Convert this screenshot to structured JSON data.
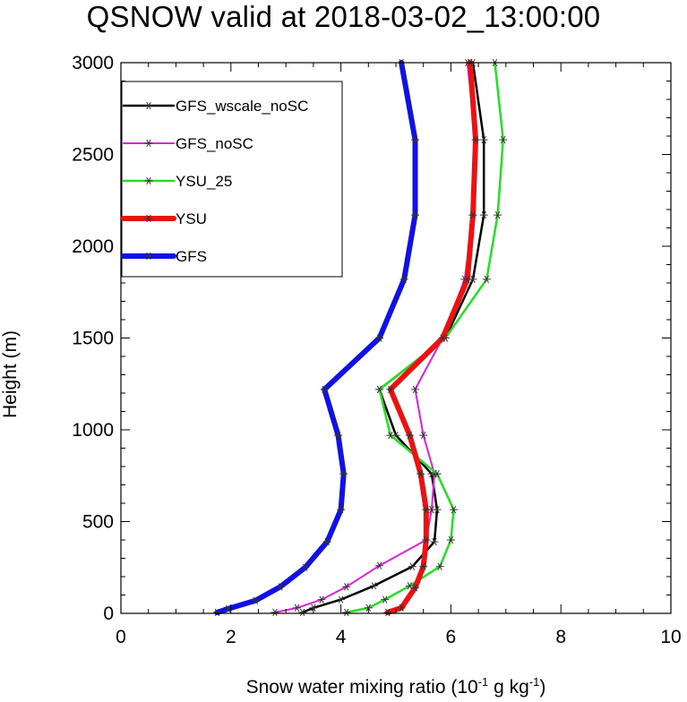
{
  "chart_data": {
    "type": "line",
    "title": "QSNOW valid at 2018-03-02_13:00:00",
    "xlabel_parts": [
      "Snow water mixing ratio (10",
      "-1",
      " g kg",
      "-1",
      ")"
    ],
    "ylabel": "Height (m)",
    "xlim": [
      0,
      10
    ],
    "ylim": [
      0,
      3000
    ],
    "x_ticks": [
      "0",
      "2",
      "4",
      "6",
      "8",
      "10"
    ],
    "y_ticks": [
      "0",
      "500",
      "1000",
      "1500",
      "2000",
      "2500",
      "3000"
    ],
    "grid": false,
    "legend_position": "top-left",
    "series": [
      {
        "name": "GFS_wscale_noSC",
        "color": "#000000",
        "width": 2.5,
        "points": [
          [
            3.3,
            5
          ],
          [
            3.5,
            30
          ],
          [
            4.0,
            75
          ],
          [
            4.6,
            150
          ],
          [
            5.3,
            255
          ],
          [
            5.7,
            390
          ],
          [
            5.75,
            565
          ],
          [
            5.65,
            760
          ],
          [
            5.0,
            970
          ],
          [
            4.7,
            1220
          ],
          [
            5.9,
            1500
          ],
          [
            6.4,
            1820
          ],
          [
            6.6,
            2170
          ],
          [
            6.6,
            2580
          ],
          [
            6.4,
            3000
          ]
        ]
      },
      {
        "name": "GFS_noSC",
        "color": "#e020e0",
        "width": 2,
        "points": [
          [
            2.8,
            5
          ],
          [
            3.2,
            30
          ],
          [
            3.65,
            75
          ],
          [
            4.1,
            145
          ],
          [
            4.7,
            260
          ],
          [
            5.55,
            400
          ],
          [
            5.65,
            565
          ],
          [
            5.7,
            760
          ],
          [
            5.5,
            970
          ],
          [
            5.35,
            1220
          ],
          [
            5.85,
            1500
          ],
          [
            6.25,
            1820
          ],
          [
            6.4,
            2170
          ],
          [
            6.45,
            2580
          ],
          [
            6.3,
            3000
          ]
        ]
      },
      {
        "name": "YSU_25",
        "color": "#22e022",
        "width": 2.5,
        "points": [
          [
            4.1,
            5
          ],
          [
            4.5,
            30
          ],
          [
            4.8,
            75
          ],
          [
            5.25,
            150
          ],
          [
            5.8,
            255
          ],
          [
            6.0,
            400
          ],
          [
            6.05,
            565
          ],
          [
            5.75,
            760
          ],
          [
            4.9,
            970
          ],
          [
            4.7,
            1220
          ],
          [
            5.9,
            1500
          ],
          [
            6.65,
            1820
          ],
          [
            6.85,
            2170
          ],
          [
            6.95,
            2580
          ],
          [
            6.8,
            3000
          ]
        ]
      },
      {
        "name": "YSU",
        "color": "#ee1111",
        "width": 6,
        "points": [
          [
            4.85,
            5
          ],
          [
            5.1,
            30
          ],
          [
            5.35,
            140
          ],
          [
            5.5,
            255
          ],
          [
            5.55,
            400
          ],
          [
            5.55,
            565
          ],
          [
            5.45,
            760
          ],
          [
            5.25,
            970
          ],
          [
            4.9,
            1220
          ],
          [
            5.85,
            1500
          ],
          [
            6.3,
            1820
          ],
          [
            6.4,
            2170
          ],
          [
            6.45,
            2580
          ],
          [
            6.35,
            3000
          ]
        ]
      },
      {
        "name": "GFS",
        "color": "#1010e8",
        "width": 6,
        "points": [
          [
            1.75,
            5
          ],
          [
            1.95,
            25
          ],
          [
            2.45,
            70
          ],
          [
            2.9,
            145
          ],
          [
            3.35,
            250
          ],
          [
            3.75,
            390
          ],
          [
            4.0,
            565
          ],
          [
            4.05,
            760
          ],
          [
            3.95,
            970
          ],
          [
            3.7,
            1220
          ],
          [
            4.7,
            1500
          ],
          [
            5.15,
            1820
          ],
          [
            5.35,
            2170
          ],
          [
            5.35,
            2580
          ],
          [
            5.1,
            3000
          ]
        ]
      }
    ]
  }
}
